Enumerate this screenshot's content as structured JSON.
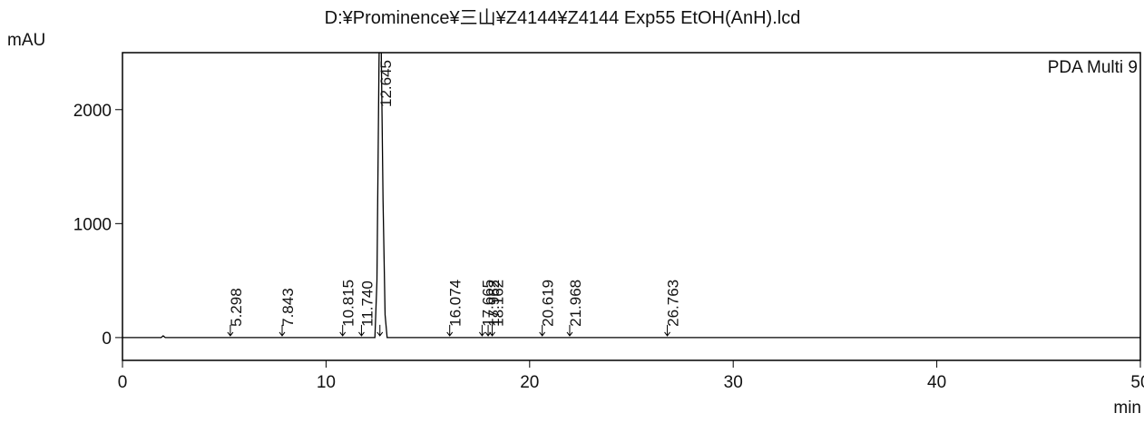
{
  "chart_data": {
    "type": "line",
    "title": "D:¥Prominence¥三山¥Z4144¥Z4144 Exp55 EtOH(AnH).lcd",
    "y_label": "mAU",
    "x_label": "min",
    "legend": "PDA Multi 9",
    "x": [
      0,
      1.9,
      2.0,
      2.1,
      5,
      12.4,
      12.5,
      12.6,
      12.645,
      12.7,
      12.8,
      12.9,
      13.0,
      50
    ],
    "series": [
      {
        "name": "PDA Multi 9",
        "color": "#000000",
        "values": [
          0,
          0,
          15,
          0,
          0,
          0,
          500,
          2400,
          3000,
          2700,
          1200,
          200,
          0,
          0
        ]
      }
    ],
    "peaks": [
      5.298,
      7.843,
      10.815,
      11.74,
      12.645,
      16.074,
      17.665,
      17.962,
      18.162,
      20.619,
      21.968,
      26.763
    ],
    "peak_labels": [
      "5.298",
      "7.843",
      "10.815",
      "11.740",
      "12.645",
      "16.074",
      "17.665",
      "17.962",
      "18.162",
      "20.619",
      "21.968",
      "26.763"
    ],
    "xlim": [
      0,
      50
    ],
    "xticks": [
      0,
      10,
      20,
      30,
      40,
      50
    ],
    "ylim": [
      -200,
      2500
    ],
    "yticks": [
      0,
      1000,
      2000
    ]
  }
}
